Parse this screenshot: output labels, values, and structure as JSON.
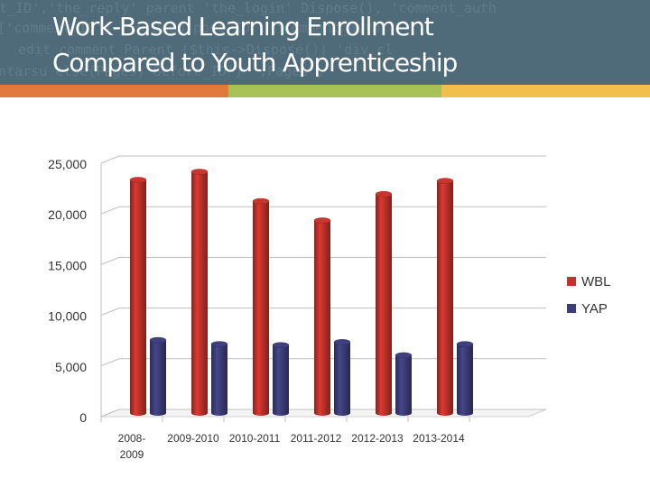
{
  "title": {
    "line1": "Work-Based Learning Enrollment",
    "line2": "Compared to Youth Apprenticeship"
  },
  "colors": {
    "banner": "#4f6b7a",
    "stripe_orange": "#e0793a",
    "stripe_green": "#a7c157",
    "stripe_yellow": "#f2bf4b",
    "wbl": "#c0322b",
    "yap": "#3d3d79",
    "gridline": "#bfbfbf"
  },
  "chart_data": {
    "type": "bar",
    "title": "",
    "xlabel": "",
    "ylabel": "",
    "categories": [
      "2008-2009",
      "2009-2010",
      "2010-2011",
      "2011-2012",
      "2012-2013",
      "2013-2014"
    ],
    "series": [
      {
        "name": "WBL",
        "values": [
          23000,
          23800,
          20900,
          19000,
          21600,
          22900
        ]
      },
      {
        "name": "YAP",
        "values": [
          7200,
          6800,
          6700,
          7000,
          5700,
          6800
        ]
      }
    ],
    "ylim": [
      0,
      25000
    ],
    "yticks": [
      "0",
      "5,000",
      "10,000",
      "15,000",
      "20,000",
      "25,000"
    ],
    "grid": true,
    "legend": "right",
    "style": "3d-cylinder"
  }
}
